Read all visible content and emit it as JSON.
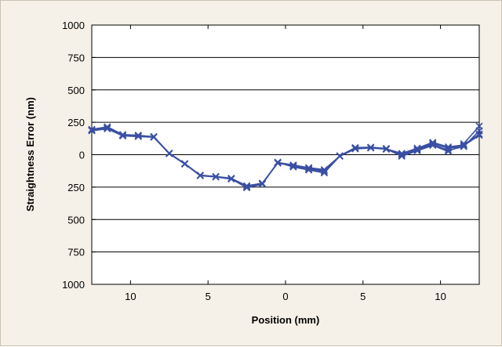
{
  "chart_data": {
    "type": "line",
    "xlabel": "Position (mm)",
    "ylabel": "Straightness Error (nm)",
    "x_ticks": [
      {
        "value": -10,
        "label": "10"
      },
      {
        "value": -5,
        "label": "5"
      },
      {
        "value": 0,
        "label": "0"
      },
      {
        "value": 5,
        "label": "5"
      },
      {
        "value": 10,
        "label": "10"
      }
    ],
    "y_ticks": [
      {
        "value": 1000,
        "label": "1000"
      },
      {
        "value": 750,
        "label": "750"
      },
      {
        "value": 500,
        "label": "500"
      },
      {
        "value": 250,
        "label": "250"
      },
      {
        "value": 0,
        "label": "0"
      },
      {
        "value": -250,
        "label": "250"
      },
      {
        "value": -500,
        "label": "500"
      },
      {
        "value": -750,
        "label": "750"
      },
      {
        "value": -1000,
        "label": "1000"
      }
    ],
    "xlim": [
      -12.5,
      12.5
    ],
    "ylim": [
      -1000,
      1000
    ],
    "grid": {
      "horizontal": true,
      "vertical": false
    },
    "marker": "x",
    "color": "#3a4fa3",
    "x": [
      -12.5,
      -11.5,
      -10.5,
      -9.5,
      -8.5,
      -7.5,
      -6.5,
      -5.5,
      -4.5,
      -3.5,
      -2.5,
      -1.5,
      -0.5,
      0.5,
      1.5,
      2.5,
      3.5,
      4.5,
      5.5,
      6.5,
      7.5,
      8.5,
      9.5,
      10.5,
      11.5,
      12.5
    ],
    "series": [
      {
        "values": [
          190,
          210,
          150,
          145,
          140,
          10,
          -70,
          -160,
          -170,
          -185,
          -250,
          -225,
          -60,
          -80,
          -100,
          -115,
          -10,
          50,
          55,
          45,
          10,
          50,
          95,
          60,
          75,
          160
        ]
      },
      {
        "values": [
          185,
          200,
          145,
          140,
          135,
          8,
          -72,
          -162,
          -172,
          -188,
          -245,
          -222,
          -65,
          -85,
          -105,
          -125,
          -12,
          45,
          52,
          42,
          5,
          45,
          88,
          50,
          70,
          150
        ]
      },
      {
        "values": [
          195,
          215,
          155,
          150,
          138,
          12,
          -68,
          -158,
          -168,
          -182,
          -240,
          -220,
          -62,
          -90,
          -112,
          -135,
          -8,
          55,
          58,
          48,
          -5,
          38,
          80,
          35,
          62,
          185
        ]
      },
      {
        "values": [
          188,
          205,
          148,
          143,
          136,
          10,
          -71,
          -160,
          -170,
          -186,
          -255,
          -228,
          -58,
          -95,
          -118,
          -140,
          -11,
          48,
          54,
          44,
          -12,
          30,
          72,
          25,
          85,
          220
        ]
      }
    ]
  }
}
